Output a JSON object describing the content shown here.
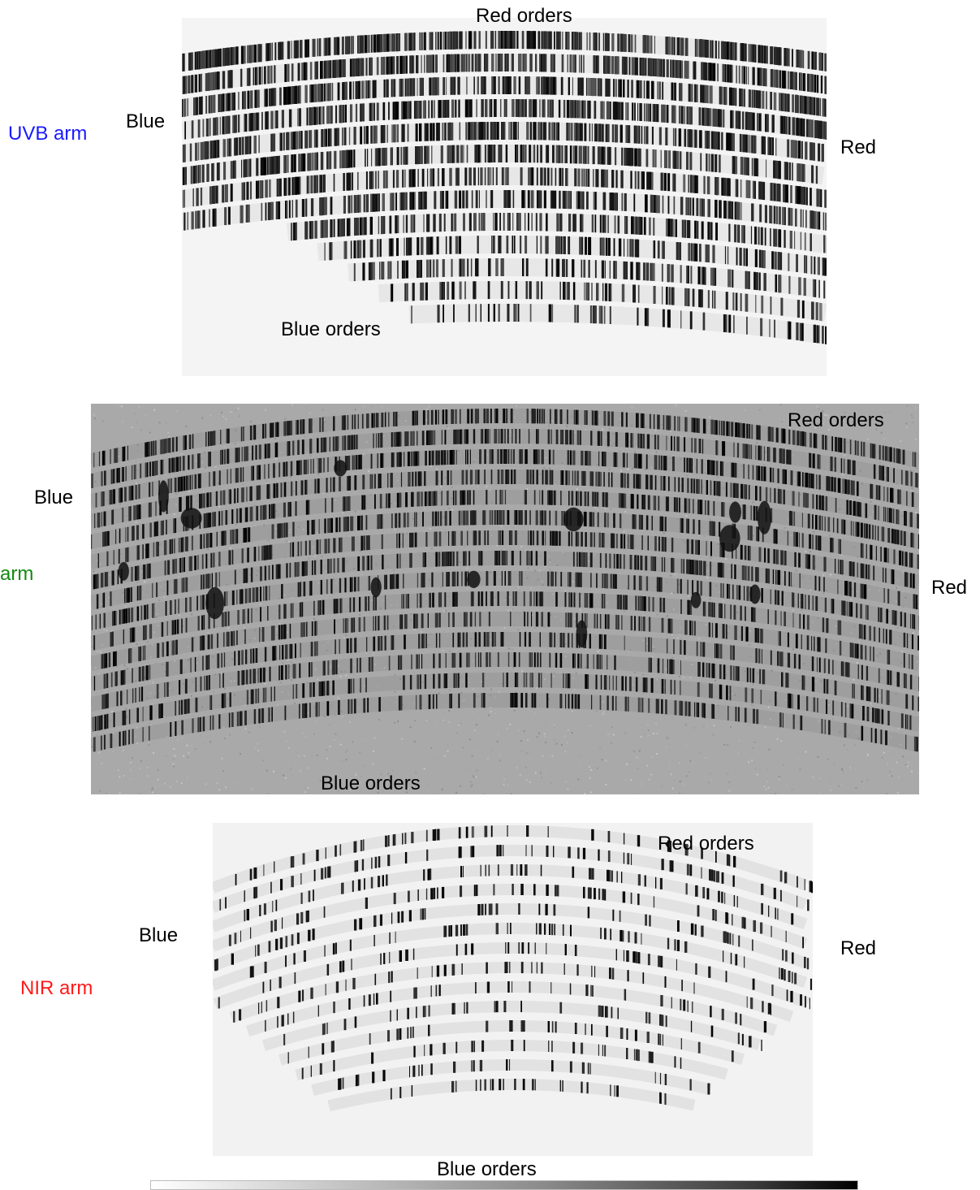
{
  "panels": {
    "uvb": {
      "arm_label": "UVB arm",
      "arm_color": "#1a1aff",
      "blue_end": "Blue",
      "red_end": "Red",
      "red_orders": "Red orders",
      "blue_orders": "Blue orders",
      "tone": "light"
    },
    "vis": {
      "arm_label": "arm",
      "arm_color": "#128a12",
      "blue_end": "Blue",
      "red_end": "Red",
      "red_orders": "Red orders",
      "blue_orders": "Blue orders",
      "tone": "grey"
    },
    "nir": {
      "arm_label": "NIR arm",
      "arm_color": "#ff1a1a",
      "blue_end": "Blue",
      "red_end": "Red",
      "red_orders": "Red orders",
      "blue_orders": "Blue orders",
      "tone": "light"
    }
  },
  "colorbar": {
    "scale": "white-to-black"
  }
}
